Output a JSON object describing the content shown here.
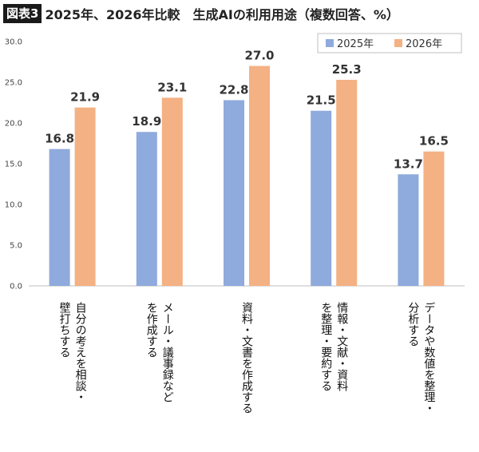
{
  "figure": {
    "badge": "図表3",
    "title": "2025年、2026年比較　生成AIの利用用途（複数回答、%）"
  },
  "chart_data": {
    "type": "bar",
    "title": "2025年、2026年比較　生成AIの利用用途（複数回答、%）",
    "categories": [
      [
        "自分の考えを相談・",
        "壁打ちする"
      ],
      [
        "メール・議事録など",
        "を作成する"
      ],
      [
        "資料・文書を作成する"
      ],
      [
        "情報・文献・資料",
        "を整理・要約する"
      ],
      [
        "データや数値を整理・",
        "分析する"
      ]
    ],
    "series": [
      {
        "name": "2025年",
        "color": "#8faadc",
        "values": [
          16.8,
          18.9,
          22.8,
          21.5,
          13.7
        ]
      },
      {
        "name": "2026年",
        "color": "#f4b183",
        "values": [
          21.9,
          23.1,
          27.0,
          25.3,
          16.5
        ]
      }
    ],
    "y_ticks": [
      "0.0",
      "5.0",
      "10.0",
      "15.0",
      "20.0",
      "25.0",
      "30.0"
    ],
    "ylim": [
      0,
      30
    ],
    "xlabel": "",
    "ylabel": "",
    "grid": false,
    "legend_position": "top-right",
    "value_labels": [
      [
        "16.8",
        "18.9",
        "22.8",
        "21.5",
        "13.7"
      ],
      [
        "21.9",
        "23.1",
        "27.0",
        "25.3",
        "16.5"
      ]
    ]
  }
}
